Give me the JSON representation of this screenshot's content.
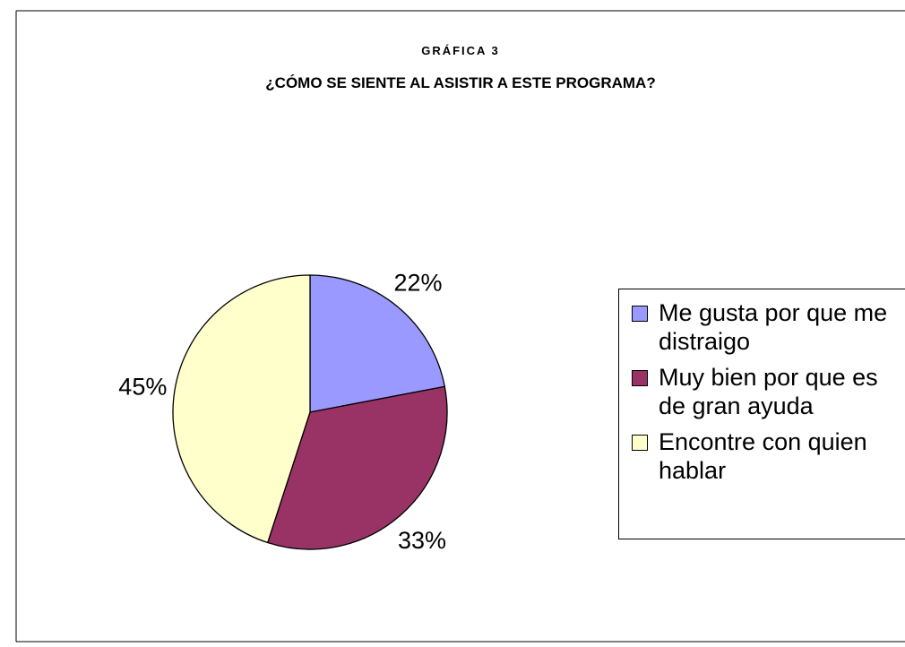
{
  "chart_data": {
    "type": "pie",
    "title": "GRÁFICA 3",
    "subtitle": "¿CÓMO SE SIENTE AL ASISTIR A ESTE PROGRAMA?",
    "categories": [
      "Me gusta por que me distraigo",
      "Muy bien por que es de gran ayuda",
      "Encontre con quien hablar"
    ],
    "values": [
      22,
      33,
      45
    ],
    "value_labels": [
      "22%",
      "33%",
      "45%"
    ],
    "colors": [
      "#9999ff",
      "#993366",
      "#ffffcc"
    ],
    "legend": "right"
  }
}
